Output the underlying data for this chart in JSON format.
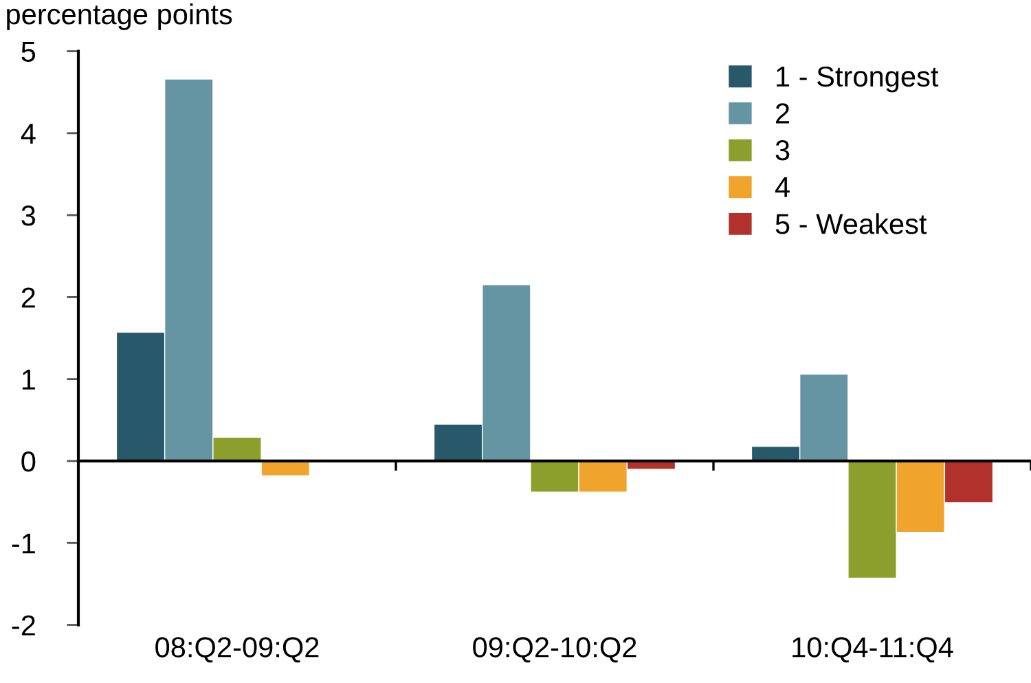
{
  "chart_data": {
    "type": "bar",
    "ylabel": "percentage points",
    "categories": [
      "08:Q2-09:Q2",
      "09:Q2-10:Q2",
      "10:Q4-11:Q4"
    ],
    "series": [
      {
        "name": "1 - Strongest",
        "color": "#27596a",
        "values": [
          1.57,
          0.45,
          0.18
        ]
      },
      {
        "name": "2",
        "color": "#6595a3",
        "values": [
          4.66,
          2.15,
          1.06
        ]
      },
      {
        "name": "3",
        "color": "#8c9f2c",
        "values": [
          0.29,
          -0.38,
          -1.43
        ]
      },
      {
        "name": "4",
        "color": "#f0a42c",
        "values": [
          -0.18,
          -0.38,
          -0.87
        ]
      },
      {
        "name": "5 - Weakest",
        "color": "#b3312c",
        "values": [
          null,
          -0.1,
          -0.51
        ]
      }
    ],
    "ylim": [
      -2,
      5
    ],
    "yticks": [
      -2,
      -1,
      0,
      1,
      2,
      3,
      4,
      5
    ],
    "legend": "top right"
  }
}
